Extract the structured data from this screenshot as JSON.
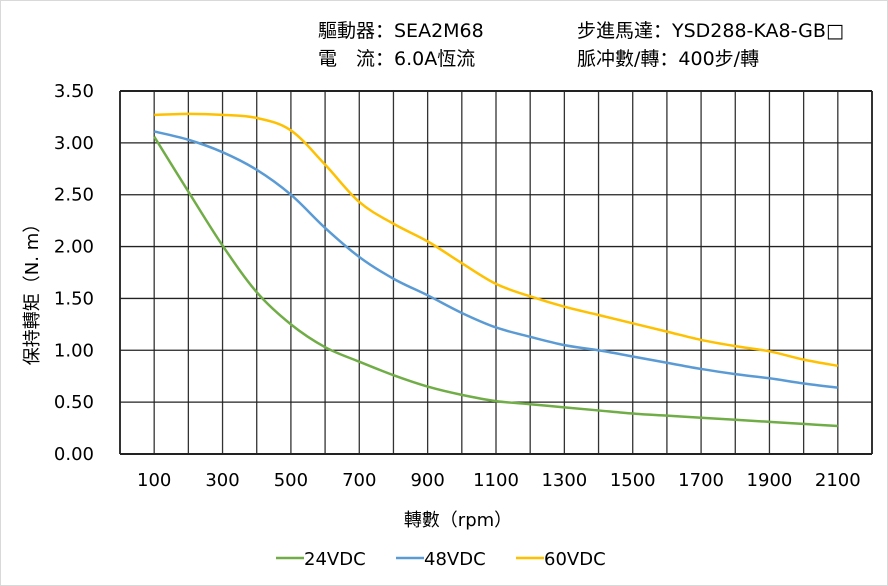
{
  "header": {
    "driver": "驅動器：SEA2M68",
    "current": "電　流：6.0A恆流",
    "motor": "步進馬達：YSD288-KA8-GB□",
    "pulses": "脈冲數/轉：400步/轉"
  },
  "chart_data": {
    "type": "line",
    "title": "",
    "xlabel": "轉數（rpm）",
    "ylabel": "保持轉矩（N. m）",
    "xlim": [
      0,
      2200
    ],
    "ylim": [
      0,
      3.5
    ],
    "grid": true,
    "legend_placement": "bottom",
    "x_ticks": [
      100,
      300,
      500,
      700,
      900,
      1100,
      1300,
      1500,
      1700,
      1900,
      2100
    ],
    "x_tick_labels": [
      "100",
      "300",
      "500",
      "700",
      "900",
      "1100",
      "1300",
      "1500",
      "1700",
      "1900",
      "2100"
    ],
    "y_tick_labels": [
      "0.00",
      "0.50",
      "1.00",
      "1.50",
      "2.00",
      "2.50",
      "3.00",
      "3.50"
    ],
    "x": [
      100,
      200,
      300,
      400,
      500,
      600,
      700,
      800,
      900,
      1000,
      1100,
      1200,
      1300,
      1400,
      1500,
      1600,
      1700,
      1800,
      1900,
      2000,
      2100
    ],
    "series": [
      {
        "name": "24VDC",
        "color": "#70AD47",
        "values": [
          3.06,
          2.53,
          2.01,
          1.56,
          1.25,
          1.03,
          0.89,
          0.76,
          0.65,
          0.57,
          0.51,
          0.48,
          0.45,
          0.42,
          0.39,
          0.37,
          0.35,
          0.33,
          0.31,
          0.29,
          0.27
        ]
      },
      {
        "name": "48VDC",
        "color": "#5B9BD5",
        "values": [
          3.11,
          3.03,
          2.91,
          2.74,
          2.5,
          2.18,
          1.9,
          1.69,
          1.53,
          1.36,
          1.22,
          1.13,
          1.05,
          1.0,
          0.94,
          0.88,
          0.82,
          0.77,
          0.73,
          0.68,
          0.64
        ]
      },
      {
        "name": "60VDC",
        "color": "#FFC000",
        "values": [
          3.27,
          3.28,
          3.27,
          3.24,
          3.12,
          2.79,
          2.43,
          2.22,
          2.05,
          1.84,
          1.64,
          1.52,
          1.42,
          1.34,
          1.26,
          1.18,
          1.1,
          1.04,
          0.99,
          0.91,
          0.85
        ]
      }
    ]
  }
}
